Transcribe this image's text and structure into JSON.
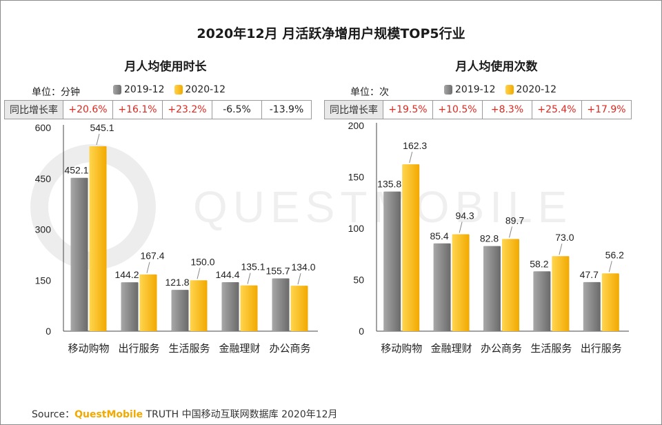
{
  "title": "2020年12月  月活跃净增用户规模TOP5行业",
  "watermark_text": "QUESTMOBILE",
  "source": {
    "prefix": "Source：",
    "brand": "QuestMobile",
    "rest": " TRUTH 中国移动互联网数据库 2020年12月"
  },
  "colors": {
    "s2019": "#8c8c8c",
    "s2020": "#ffc000",
    "positive": "#e0261d"
  },
  "yoy_label": "同比增长率",
  "chart_data": [
    {
      "type": "bar",
      "title": "月人均使用时长",
      "unit_label": "单位：分钟",
      "categories": [
        "移动购物",
        "出行服务",
        "生活服务",
        "金融理财",
        "办公商务"
      ],
      "series": [
        {
          "name": "2019-12",
          "values": [
            452.1,
            144.2,
            121.8,
            144.4,
            155.7
          ]
        },
        {
          "name": "2020-12",
          "values": [
            545.1,
            167.4,
            150.0,
            135.1,
            134.0
          ]
        }
      ],
      "value_labels": [
        [
          "452.1",
          "144.2",
          "121.8",
          "144.4",
          "155.7"
        ],
        [
          "545.1",
          "167.4",
          "150.0",
          "135.1",
          "134.0"
        ]
      ],
      "yoy": [
        "+20.6%",
        "+16.1%",
        "+23.2%",
        "-6.5%",
        "-13.9%"
      ],
      "ylim": [
        0,
        600
      ],
      "yticks": [
        "0",
        "150",
        "300",
        "450",
        "600"
      ],
      "ytick_values": [
        0,
        150,
        300,
        450,
        600
      ]
    },
    {
      "type": "bar",
      "title": "月人均使用次数",
      "unit_label": "单位：次",
      "categories": [
        "移动购物",
        "金融理财",
        "办公商务",
        "生活服务",
        "出行服务"
      ],
      "series": [
        {
          "name": "2019-12",
          "values": [
            135.8,
            85.4,
            82.8,
            58.2,
            47.7
          ]
        },
        {
          "name": "2020-12",
          "values": [
            162.3,
            94.3,
            89.7,
            73.0,
            56.2
          ]
        }
      ],
      "value_labels": [
        [
          "135.8",
          "85.4",
          "82.8",
          "58.2",
          "47.7"
        ],
        [
          "162.3",
          "94.3",
          "89.7",
          "73.0",
          "56.2"
        ]
      ],
      "yoy": [
        "+19.5%",
        "+10.5%",
        "+8.3%",
        "+25.4%",
        "+17.9%"
      ],
      "ylim": [
        0,
        200
      ],
      "yticks": [
        "0",
        "50",
        "100",
        "150",
        "200"
      ],
      "ytick_values": [
        0,
        50,
        100,
        150,
        200
      ]
    }
  ]
}
